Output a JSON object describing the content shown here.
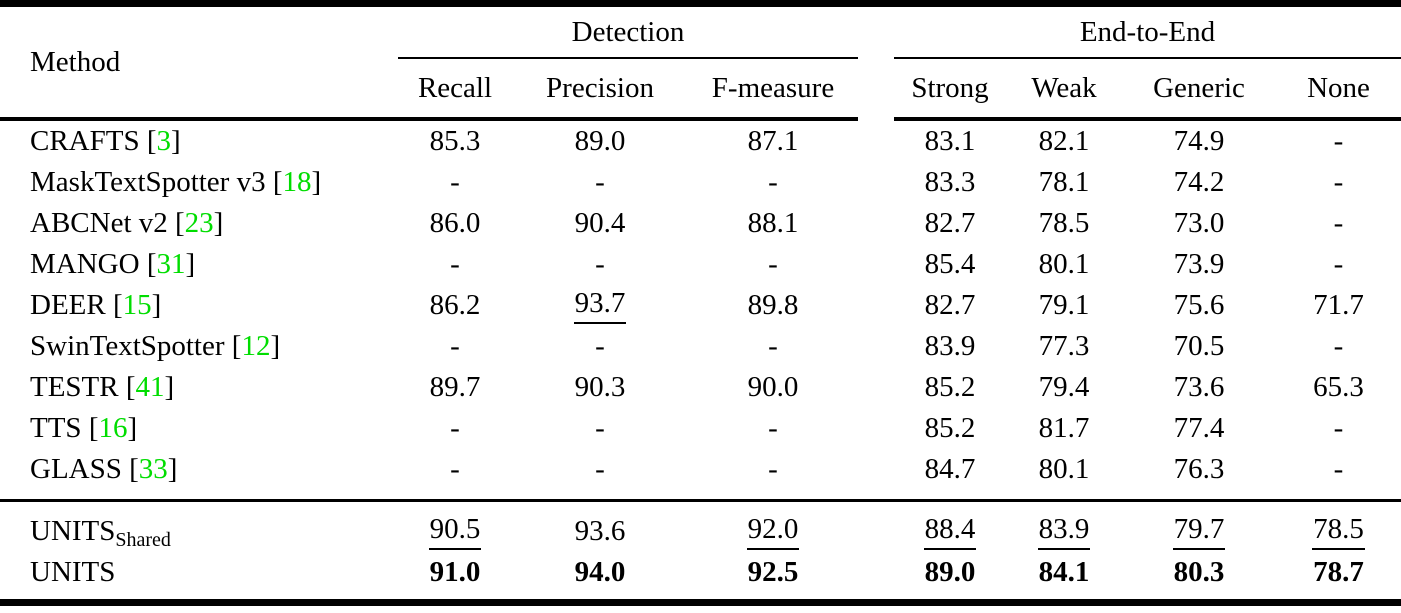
{
  "colors": {
    "citation_green": "#00dd00",
    "text": "#000000",
    "background": "#ffffff",
    "rule": "#000000"
  },
  "table": {
    "method_header": "Method",
    "groups": [
      {
        "label": "Detection"
      },
      {
        "label": "End-to-End"
      }
    ],
    "subheaders": [
      "Recall",
      "Precision",
      "F-measure",
      "Strong",
      "Weak",
      "Generic",
      "None"
    ],
    "rows": [
      {
        "method": "CRAFTS",
        "cite": "3",
        "cells": [
          "85.3",
          "89.0",
          "87.1",
          "83.1",
          "82.1",
          "74.9",
          "-"
        ],
        "underline": []
      },
      {
        "method": "MaskTextSpotter v3",
        "cite": "18",
        "cells": [
          "-",
          "-",
          "-",
          "83.3",
          "78.1",
          "74.2",
          "-"
        ],
        "underline": []
      },
      {
        "method": "ABCNet v2",
        "cite": "23",
        "cells": [
          "86.0",
          "90.4",
          "88.1",
          "82.7",
          "78.5",
          "73.0",
          "-"
        ],
        "underline": []
      },
      {
        "method": "MANGO",
        "cite": "31",
        "cells": [
          "-",
          "-",
          "-",
          "85.4",
          "80.1",
          "73.9",
          "-"
        ],
        "underline": []
      },
      {
        "method": "DEER",
        "cite": "15",
        "cells": [
          "86.2",
          "93.7",
          "89.8",
          "82.7",
          "79.1",
          "75.6",
          "71.7"
        ],
        "underline": [
          1
        ]
      },
      {
        "method": "SwinTextSpotter",
        "cite": "12",
        "cells": [
          "-",
          "-",
          "-",
          "83.9",
          "77.3",
          "70.5",
          "-"
        ],
        "underline": []
      },
      {
        "method": "TESTR",
        "cite": "41",
        "cells": [
          "89.7",
          "90.3",
          "90.0",
          "85.2",
          "79.4",
          "73.6",
          "65.3"
        ],
        "underline": []
      },
      {
        "method": "TTS",
        "cite": "16",
        "cells": [
          "-",
          "-",
          "-",
          "85.2",
          "81.7",
          "77.4",
          "-"
        ],
        "underline": []
      },
      {
        "method": "GLASS",
        "cite": "33",
        "cells": [
          "-",
          "-",
          "-",
          "84.7",
          "80.1",
          "76.3",
          "-"
        ],
        "underline": []
      }
    ],
    "footer_rows": [
      {
        "method": "UNITS",
        "subscript": "Shared",
        "cite": "",
        "cells": [
          "90.5",
          "93.6",
          "92.0",
          "88.4",
          "83.9",
          "79.7",
          "78.5"
        ],
        "underline": [
          0,
          2,
          3,
          4,
          5,
          6
        ],
        "bold": false
      },
      {
        "method": "UNITS",
        "subscript": "",
        "cite": "",
        "cells": [
          "91.0",
          "94.0",
          "92.5",
          "89.0",
          "84.1",
          "80.3",
          "78.7"
        ],
        "underline": [],
        "bold": true
      }
    ]
  }
}
